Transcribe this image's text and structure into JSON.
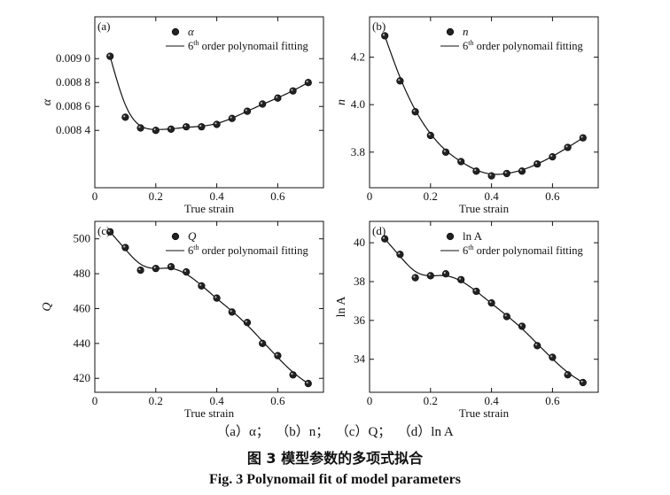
{
  "captions": {
    "sub": "（a）α；  （b）n；  （c）Q；  （d）ln A",
    "cn": "图 3    模型参数的多项式拟合",
    "en": "Fig. 3    Polynomail fit of model parameters"
  },
  "chart_data": [
    {
      "type": "scatter",
      "panel_label": "(a)",
      "xlabel": "True strain",
      "ylabel": "α",
      "xlim": [
        0,
        0.75
      ],
      "ylim": [
        0.00792,
        0.00935
      ],
      "xticks": [
        0,
        0.2,
        0.4,
        0.6
      ],
      "xtick_labels": [
        "0",
        "0.2",
        "0.4",
        "0.6"
      ],
      "yticks": [
        0.0084,
        0.0086,
        0.0088,
        0.009
      ],
      "ytick_labels": [
        "0.008 4",
        "0.008 6",
        "0.008 8",
        "0.009 0"
      ],
      "legend_marker": "α",
      "legend_line_prefix": "6",
      "legend_line_sup": "th",
      "legend_line_suffix": " order polynomail fitting",
      "legend_position": "top-right",
      "series": [
        {
          "name": "α",
          "x": [
            0.05,
            0.1,
            0.15,
            0.2,
            0.25,
            0.3,
            0.35,
            0.4,
            0.45,
            0.5,
            0.55,
            0.6,
            0.65,
            0.7
          ],
          "y": [
            0.00902,
            0.00851,
            0.00842,
            0.0084,
            0.00841,
            0.00843,
            0.00843,
            0.00845,
            0.0085,
            0.00856,
            0.00862,
            0.00867,
            0.00873,
            0.0088
          ]
        }
      ]
    },
    {
      "type": "scatter",
      "panel_label": "(b)",
      "xlabel": "True strain",
      "ylabel": "n",
      "xlim": [
        0,
        0.75
      ],
      "ylim": [
        3.65,
        4.37
      ],
      "xticks": [
        0,
        0.2,
        0.4,
        0.6
      ],
      "xtick_labels": [
        "0",
        "0.2",
        "0.4",
        "0.6"
      ],
      "yticks": [
        3.8,
        4.0,
        4.2
      ],
      "ytick_labels": [
        "3.8",
        "4.0",
        "4.2"
      ],
      "legend_marker": "n",
      "legend_line_prefix": "6",
      "legend_line_sup": "th",
      "legend_line_suffix": " order polynomail fitting",
      "legend_position": "top-right",
      "series": [
        {
          "name": "n",
          "x": [
            0.05,
            0.1,
            0.15,
            0.2,
            0.25,
            0.3,
            0.35,
            0.4,
            0.45,
            0.5,
            0.55,
            0.6,
            0.65,
            0.7
          ],
          "y": [
            4.29,
            4.1,
            3.97,
            3.87,
            3.8,
            3.76,
            3.72,
            3.7,
            3.71,
            3.72,
            3.75,
            3.78,
            3.82,
            3.86
          ]
        }
      ]
    },
    {
      "type": "scatter",
      "panel_label": "(c)",
      "xlabel": "True strain",
      "ylabel": "Q",
      "xlim": [
        0,
        0.75
      ],
      "ylim": [
        412,
        510
      ],
      "xticks": [
        0,
        0.2,
        0.4,
        0.6
      ],
      "xtick_labels": [
        "0",
        "0.2",
        "0.4",
        "0.6"
      ],
      "yticks": [
        420,
        440,
        460,
        480,
        500
      ],
      "ytick_labels": [
        "420",
        "440",
        "460",
        "480",
        "500"
      ],
      "legend_marker": "Q",
      "legend_line_prefix": "6",
      "legend_line_sup": "th",
      "legend_line_suffix": " order polynomail fitting",
      "legend_position": "top-right",
      "series": [
        {
          "name": "Q",
          "x": [
            0.05,
            0.1,
            0.15,
            0.2,
            0.25,
            0.3,
            0.35,
            0.4,
            0.45,
            0.5,
            0.55,
            0.6,
            0.65,
            0.7
          ],
          "y": [
            504,
            495,
            482,
            483,
            484,
            481,
            473,
            466,
            458,
            452,
            440,
            433,
            422,
            417
          ]
        }
      ]
    },
    {
      "type": "scatter",
      "panel_label": "(d)",
      "xlabel": "True strain",
      "ylabel": "ln A",
      "xlim": [
        0,
        0.75
      ],
      "ylim": [
        32.3,
        41.1
      ],
      "xticks": [
        0,
        0.2,
        0.4,
        0.6
      ],
      "xtick_labels": [
        "0",
        "0.2",
        "0.4",
        "0.6"
      ],
      "yticks": [
        34,
        36,
        38,
        40
      ],
      "ytick_labels": [
        "34",
        "36",
        "38",
        "40"
      ],
      "legend_marker": "ln A",
      "legend_line_prefix": "6",
      "legend_line_sup": "th",
      "legend_line_suffix": " order polynomail fitting",
      "legend_position": "top-right",
      "series": [
        {
          "name": "ln A",
          "x": [
            0.05,
            0.1,
            0.15,
            0.2,
            0.25,
            0.3,
            0.35,
            0.4,
            0.45,
            0.5,
            0.55,
            0.6,
            0.65,
            0.7
          ],
          "y": [
            40.2,
            39.4,
            38.2,
            38.3,
            38.4,
            38.1,
            37.5,
            36.9,
            36.2,
            35.7,
            34.7,
            34.1,
            33.2,
            32.8
          ]
        }
      ]
    }
  ]
}
